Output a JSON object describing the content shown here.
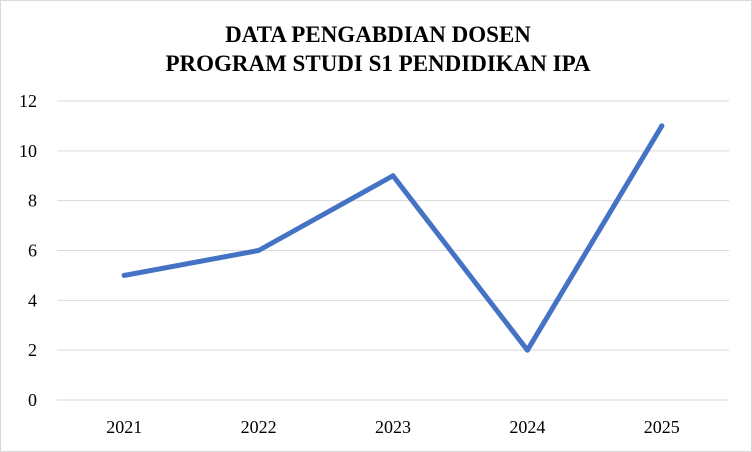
{
  "chart_data": {
    "type": "line",
    "title_lines": [
      "DATA PENGABDIAN DOSEN",
      "PROGRAM STUDI S1 PENDIDIKAN IPA"
    ],
    "xlabel": "",
    "ylabel": "",
    "categories": [
      "2021",
      "2022",
      "2023",
      "2024",
      "2025"
    ],
    "series": [
      {
        "values": [
          5,
          6,
          9,
          2,
          11
        ],
        "color": "#4472c4"
      }
    ],
    "ylim": [
      0,
      12
    ],
    "yticks": [
      "0",
      "2",
      "4",
      "6",
      "8",
      "10",
      "12"
    ],
    "grid": true,
    "legend": "none"
  }
}
